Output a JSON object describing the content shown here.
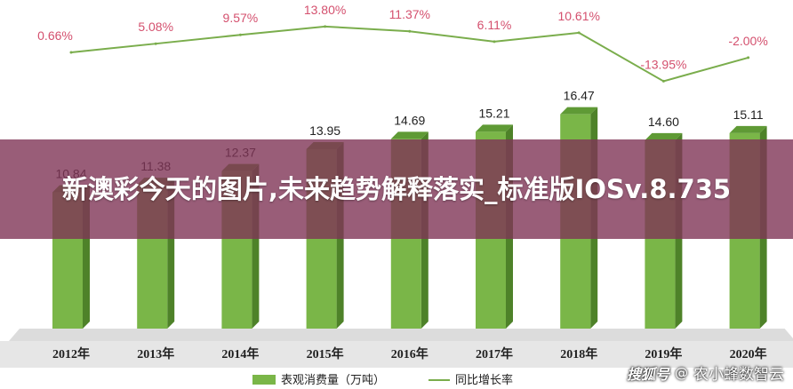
{
  "chart_data": {
    "type": "bar",
    "categories": [
      "2012年",
      "2013年",
      "2014年",
      "2015年",
      "2016年",
      "2017年",
      "2018年",
      "2019年",
      "2020年"
    ],
    "series": [
      {
        "name": "表观消费量（万吨）",
        "type": "bar",
        "values": [
          10.84,
          11.38,
          12.37,
          13.95,
          14.69,
          15.21,
          16.47,
          14.6,
          15.11
        ],
        "labels": [
          "10.84",
          "11.38",
          "12.37",
          "13.95",
          "14.69",
          "15.21",
          "16.47",
          "14.60",
          "15.11"
        ]
      },
      {
        "name": "同比增长率",
        "type": "line",
        "values": [
          0.66,
          5.08,
          9.57,
          13.8,
          11.37,
          6.11,
          10.61,
          -13.95,
          -2.0
        ],
        "labels": [
          "0.66%",
          "5.08%",
          "9.57%",
          "13.80%",
          "11.37%",
          "6.11%",
          "10.61%",
          "-13.95%",
          "-2.00%"
        ]
      }
    ],
    "legend": "bottom",
    "grid": false,
    "title": "",
    "xlabel": "",
    "ylabel": ""
  },
  "overlay": {
    "headline": "新澳彩今天的图片,未来趋势解释落实_标准版IOSv.8.735"
  },
  "brand": {
    "logo": "搜狐号",
    "separator": "@",
    "name": "农小蜂数智云"
  },
  "colors": {
    "bar_front": "#7ab648",
    "bar_top": "#5f9a35",
    "bar_side": "#4e8229",
    "floor": "#dcdcdc",
    "line": "#7aad4c",
    "pct_label": "#d4506e",
    "banner": "#803456"
  }
}
